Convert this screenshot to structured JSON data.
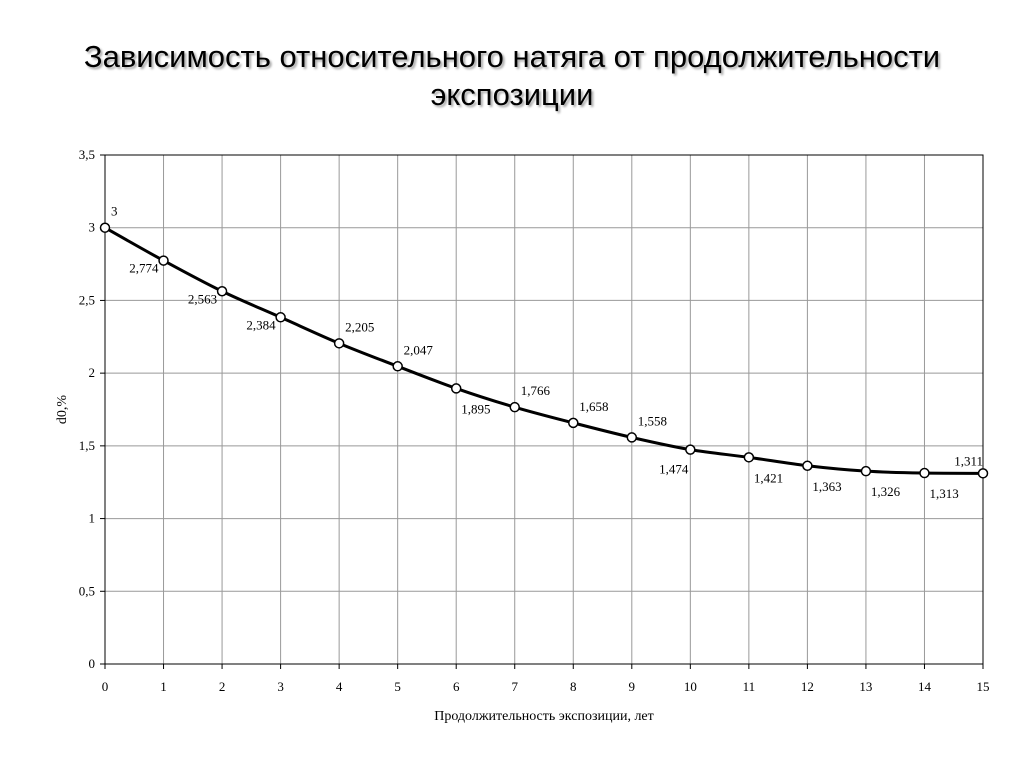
{
  "title": {
    "line1": "Зависимость относительного натяга от продолжительности",
    "line2": "экспозиции"
  },
  "colors": {
    "line": "#000000",
    "grid": "#999999",
    "frame": "#000000",
    "marker_fill": "#ffffff"
  },
  "chart_data": {
    "type": "line",
    "title": "Зависимость относительного натяга от продолжительности экспозиции",
    "xlabel": "Продолжительность экспозиции, лет",
    "ylabel": "d0,%",
    "xlim": [
      0,
      15
    ],
    "ylim": [
      0,
      3.5
    ],
    "grid": true,
    "smooth": true,
    "x_ticks": [
      "0",
      "1",
      "2",
      "3",
      "4",
      "5",
      "6",
      "7",
      "8",
      "9",
      "10",
      "11",
      "12",
      "13",
      "14",
      "15"
    ],
    "y_ticks": [
      "0",
      "0,5",
      "1",
      "1,5",
      "2",
      "2,5",
      "3",
      "3,5"
    ],
    "x": [
      0,
      1,
      2,
      3,
      4,
      5,
      6,
      7,
      8,
      9,
      10,
      11,
      12,
      13,
      14,
      15
    ],
    "series": [
      {
        "values": [
          3,
          2.774,
          2.563,
          2.384,
          2.205,
          2.047,
          1.895,
          1.766,
          1.658,
          1.558,
          1.474,
          1.421,
          1.363,
          1.326,
          1.313,
          1.311
        ],
        "labels": [
          "3",
          "2,774",
          "2,563",
          "2,384",
          "2,205",
          "2,047",
          "1,895",
          "1,766",
          "1,658",
          "1,558",
          "1,474",
          "1,421",
          "1,363",
          "1,326",
          "1,313",
          "1,311"
        ],
        "label_positions": [
          "above-right",
          "below-left",
          "below-left",
          "below-left",
          "above-right",
          "above-right",
          "below-right",
          "above-right",
          "above-right",
          "above-right",
          "below",
          "below-right",
          "below-right",
          "below-right",
          "below-right",
          "above"
        ]
      }
    ]
  }
}
